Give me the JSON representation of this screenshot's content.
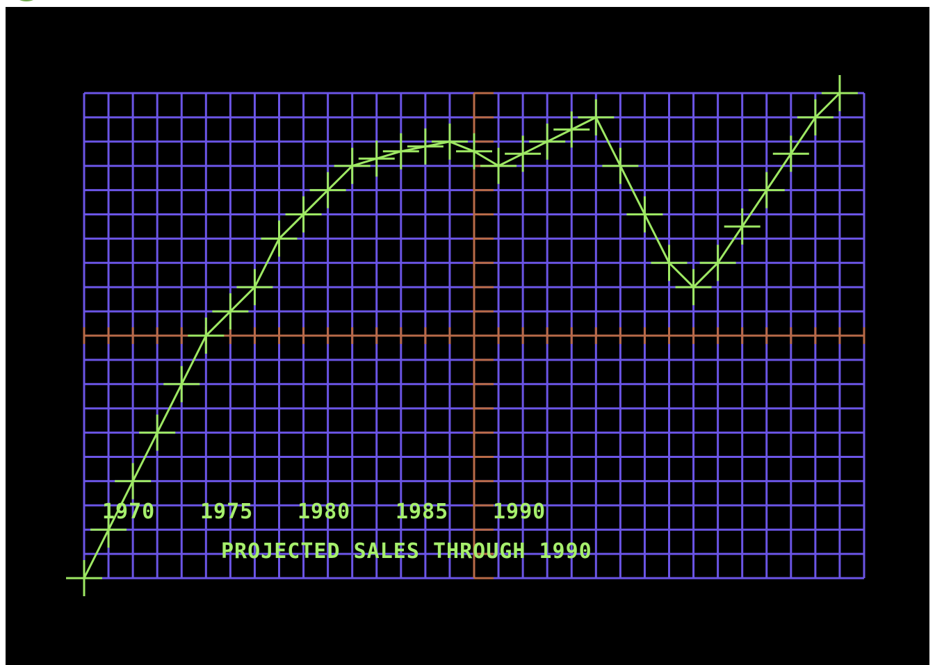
{
  "colors": {
    "background": "#000000",
    "grid": "#6b55e6",
    "axes": "#b86a48",
    "series": "#9ee863",
    "text": "#a6ef6c",
    "logo": "#6ea84a"
  },
  "icons": {
    "corner_logo": "green-circle-icon"
  },
  "chart_data": {
    "type": "line",
    "title": "PROJECTED SALES THROUGH 1990",
    "x_tick_labels": [
      "1970",
      "1975",
      "1980",
      "1985",
      "1990"
    ],
    "x_tick_values": [
      1970,
      1975,
      1980,
      1985,
      1990
    ],
    "grid": true,
    "legend": "none",
    "x_range": [
      1968,
      2000
    ],
    "y_range": [
      0,
      20
    ],
    "series": [
      {
        "values": [
          [
            1968,
            0
          ],
          [
            1969,
            2
          ],
          [
            1970,
            4
          ],
          [
            1971,
            6
          ],
          [
            1972,
            8
          ],
          [
            1973,
            10
          ],
          [
            1974,
            11
          ],
          [
            1975,
            12
          ],
          [
            1976,
            14
          ],
          [
            1977,
            15
          ],
          [
            1978,
            16
          ],
          [
            1979,
            17
          ],
          [
            1980,
            17.3
          ],
          [
            1981,
            17.6
          ],
          [
            1982,
            17.8
          ],
          [
            1983,
            18
          ],
          [
            1984,
            17.6
          ],
          [
            1985,
            17
          ],
          [
            1986,
            17.5
          ],
          [
            1987,
            18
          ],
          [
            1988,
            18.5
          ],
          [
            1989,
            19
          ],
          [
            1990,
            17
          ],
          [
            1991,
            15
          ],
          [
            1992,
            13
          ],
          [
            1993,
            12
          ],
          [
            1994,
            13
          ],
          [
            1995,
            14.5
          ],
          [
            1996,
            16
          ],
          [
            1997,
            17.5
          ],
          [
            1998,
            19
          ],
          [
            1999,
            20
          ]
        ]
      }
    ]
  }
}
